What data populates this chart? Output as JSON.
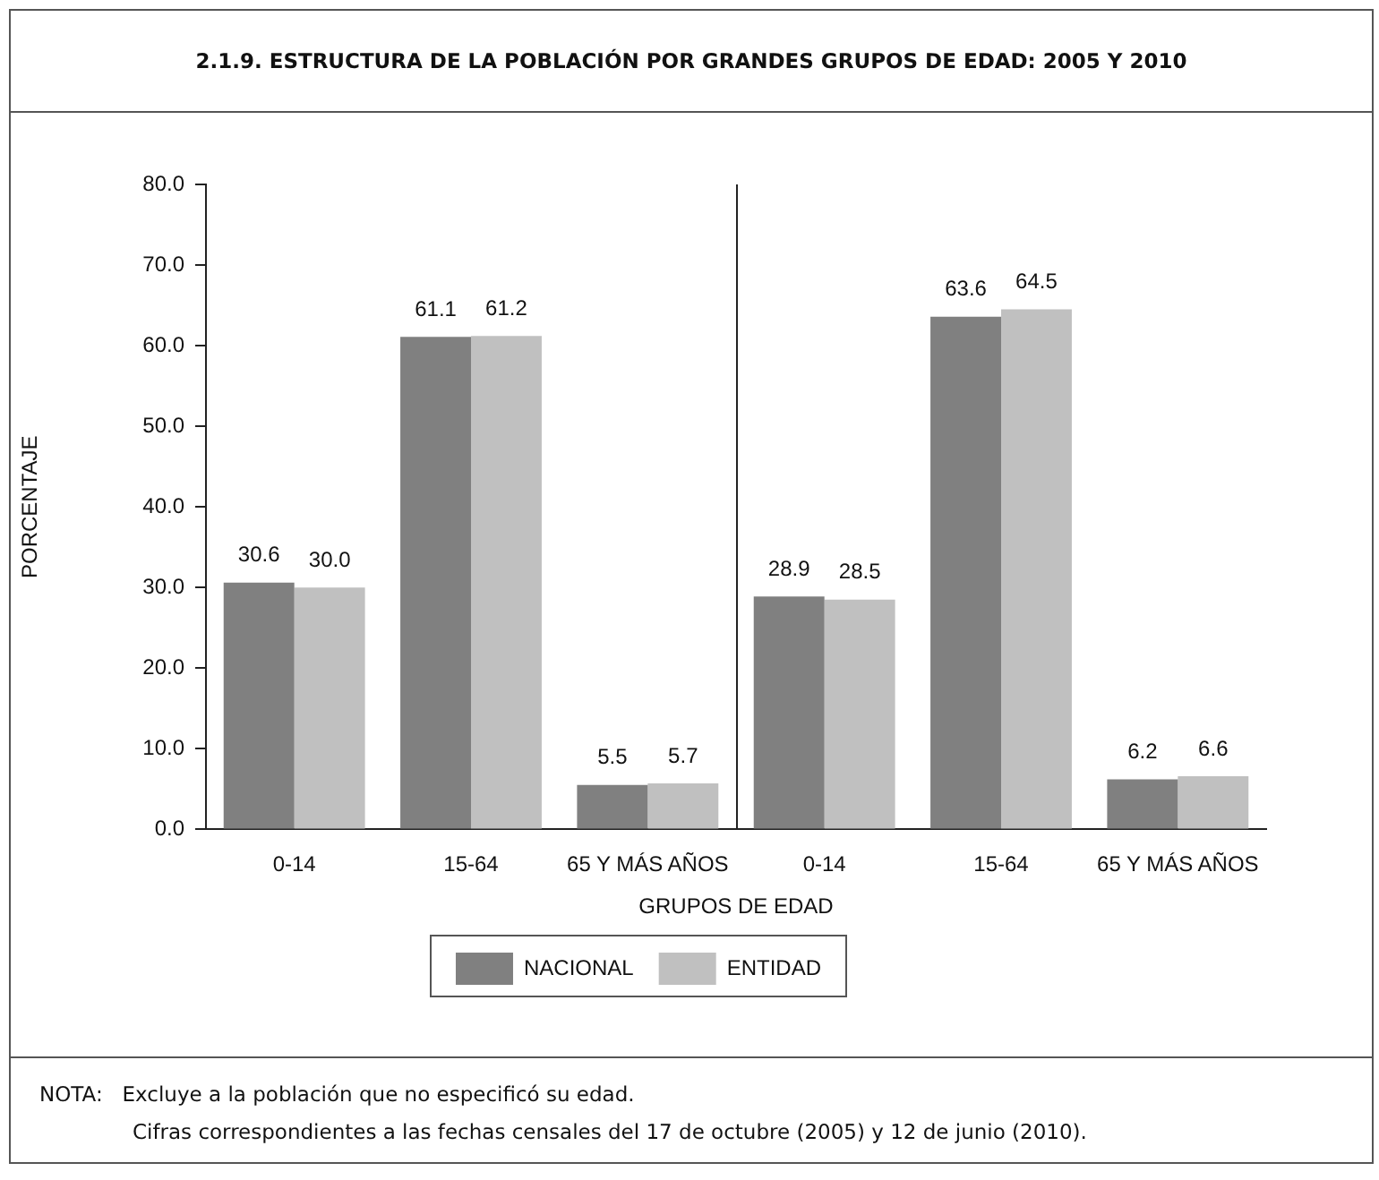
{
  "chart_data": {
    "type": "bar",
    "title": "2.1.9. ESTRUCTURA DE LA POBLACIÓN POR GRANDES GRUPOS DE EDAD: 2005 Y 2010",
    "categories": [
      "0-14",
      "15-64",
      "65 Y MÁS AÑOS",
      "0-14",
      "15-64",
      "65 Y MÁS AÑOS"
    ],
    "series": [
      {
        "name": "NACIONAL",
        "color": "#808080",
        "values": [
          30.6,
          61.1,
          5.5,
          28.9,
          63.6,
          6.2
        ],
        "value_labels": [
          "30.6",
          "61.1",
          "5.5",
          "28.9",
          "63.6",
          "6.2"
        ]
      },
      {
        "name": "ENTIDAD",
        "color": "#c0c0c0",
        "values": [
          30.0,
          61.2,
          5.7,
          28.5,
          64.5,
          6.6
        ],
        "value_labels": [
          "30.0",
          "61.2",
          "5.7",
          "28.5",
          "64.5",
          "6.6"
        ]
      }
    ],
    "xlabel": "GRUPOS DE EDAD",
    "ylabel": "PORCENTAJE",
    "ylim": [
      0,
      80
    ],
    "yticks": [
      {
        "value": 0,
        "label": "0.0"
      },
      {
        "value": 10,
        "label": "10.0"
      },
      {
        "value": 20,
        "label": "20.0"
      },
      {
        "value": 30,
        "label": "30.0"
      },
      {
        "value": 40,
        "label": "40.0"
      },
      {
        "value": 50,
        "label": "50.0"
      },
      {
        "value": 60,
        "label": "60.0"
      },
      {
        "value": 70,
        "label": "70.0"
      },
      {
        "value": 80,
        "label": "80.0"
      }
    ],
    "grid": false,
    "legend": "bottom",
    "annotations": [
      "NOTA:   Excluye a la población que no especificó su edad.",
      "Cifras correspondientes a las fechas censales del 17 de octubre (2005) y 12 de junio (2010)."
    ]
  }
}
